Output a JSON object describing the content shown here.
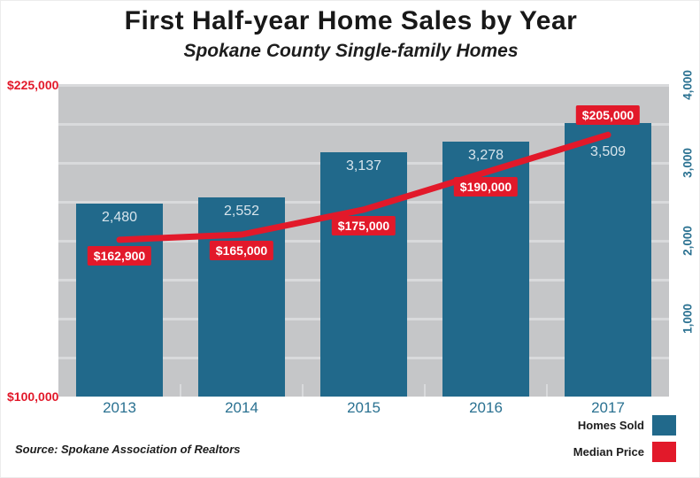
{
  "header": {
    "title": "First Half-year Home Sales by Year",
    "subtitle": "Spokane County Single-family Homes"
  },
  "source_text": "Source: Spokane Association of Realtors",
  "legend": [
    {
      "label": "Homes Sold",
      "color": "#21698b"
    },
    {
      "label": "Median Price",
      "color": "#e2192a"
    }
  ],
  "colors": {
    "bar": "#21698b",
    "line": "#e2192a",
    "plot_background": "#c5c6c8",
    "gridline": "#d9dadc",
    "left_axis_text": "#e2192a",
    "right_axis_text": "#2a7191",
    "x_axis_text": "#2a7191"
  },
  "chart_data": {
    "type": "bar",
    "title": "First Half-year Home Sales by Year",
    "subtitle": "Spokane County Single-family Homes",
    "categories": [
      "2013",
      "2014",
      "2015",
      "2016",
      "2017"
    ],
    "series": [
      {
        "name": "Homes Sold",
        "type": "bar",
        "axis": "right",
        "color": "#21698b",
        "values": [
          2480,
          2552,
          3137,
          3278,
          3509
        ],
        "labels": [
          "2,480",
          "2,552",
          "3,137",
          "3,278",
          "3,509"
        ]
      },
      {
        "name": "Median Price",
        "type": "line",
        "axis": "left",
        "color": "#e2192a",
        "values": [
          162900,
          165000,
          175000,
          190000,
          205000
        ],
        "labels": [
          "$162,900",
          "$165,000",
          "$175,000",
          "$190,000",
          "$205,000"
        ]
      }
    ],
    "left_axis": {
      "min": 100000,
      "max": 225000,
      "tick_labels": [
        "$225,000",
        "$100,000"
      ],
      "color": "#e2192a"
    },
    "right_axis": {
      "min": 0,
      "max": 4000,
      "ticks": [
        4000,
        3000,
        2000,
        1000
      ],
      "tick_labels": [
        "4,000",
        "3,000",
        "2,000",
        "1,000"
      ],
      "color": "#2a7191"
    },
    "grid": {
      "on": true,
      "interval": 500,
      "direction": "horizontal"
    },
    "legend_position": "bottom-right",
    "label_offsets": {
      "bar_value_dy": [
        7,
        7,
        7,
        7,
        24
      ],
      "price_label_dy": [
        7,
        7,
        7,
        5,
        -33
      ]
    }
  }
}
